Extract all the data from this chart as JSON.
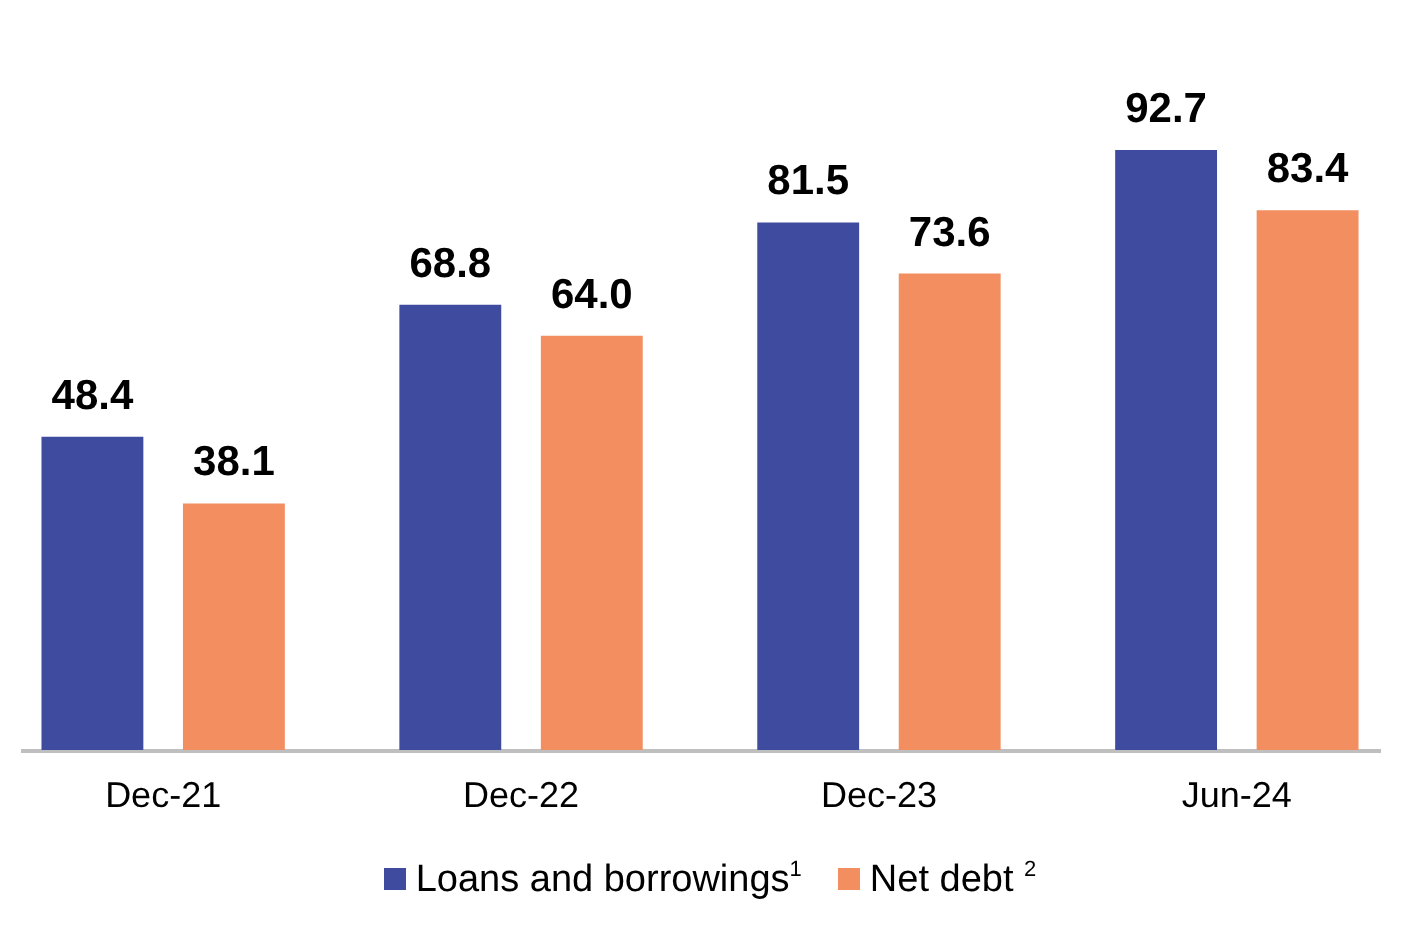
{
  "chart_data": {
    "type": "bar",
    "categories": [
      "Dec-21",
      "Dec-22",
      "Dec-23",
      "Jun-24"
    ],
    "series": [
      {
        "name": "Loans and borrowings$^{1}$",
        "color": "#3f4b9e",
        "values": [
          48.4,
          68.8,
          81.5,
          92.7
        ],
        "value_labels": [
          "48.4",
          "68.8",
          "81.5",
          "92.7"
        ]
      },
      {
        "name": "Net debt $^{2}$",
        "color": "#f28e5f",
        "values": [
          38.1,
          64.0,
          73.6,
          83.4
        ],
        "value_labels": [
          "38.1",
          "64.0",
          "73.6",
          "83.4"
        ]
      }
    ],
    "grid": false,
    "legend": "bottom"
  }
}
